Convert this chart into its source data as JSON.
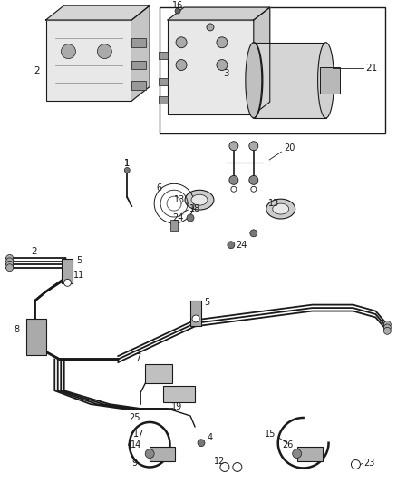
{
  "bg_color": "#ffffff",
  "fig_width": 4.38,
  "fig_height": 5.33,
  "dpi": 100,
  "dark": "#1a1a1a",
  "gray": "#888888",
  "light_gray": "#cccccc"
}
